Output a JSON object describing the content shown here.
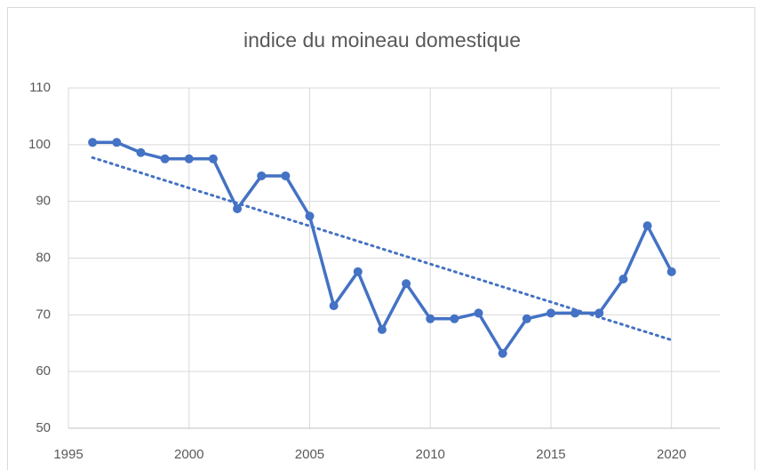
{
  "chart_data": {
    "type": "line",
    "title": "indice du moineau domestique",
    "x": [
      1996,
      1997,
      1998,
      1999,
      2000,
      2001,
      2002,
      2003,
      2004,
      2005,
      2006,
      2007,
      2008,
      2009,
      2010,
      2011,
      2012,
      2013,
      2014,
      2015,
      2016,
      2017,
      2018,
      2019,
      2020
    ],
    "series": [
      {
        "color": "#4472c4",
        "values": [
          100.4,
          100.4,
          98.6,
          97.5,
          97.5,
          97.5,
          88.7,
          94.5,
          94.5,
          87.4,
          71.6,
          77.6,
          67.4,
          75.5,
          69.3,
          69.3,
          70.3,
          63.2,
          69.3,
          70.3,
          70.3,
          70.3,
          76.3,
          85.7,
          77.6
        ],
        "markers": true,
        "trendline": "linear"
      }
    ],
    "xlim": [
      1995,
      2022
    ],
    "xticks": [
      1995,
      2000,
      2005,
      2010,
      2015,
      2020
    ],
    "ylim": [
      50,
      110
    ],
    "yticks": [
      50,
      60,
      70,
      80,
      90,
      100,
      110
    ],
    "grid": true
  }
}
